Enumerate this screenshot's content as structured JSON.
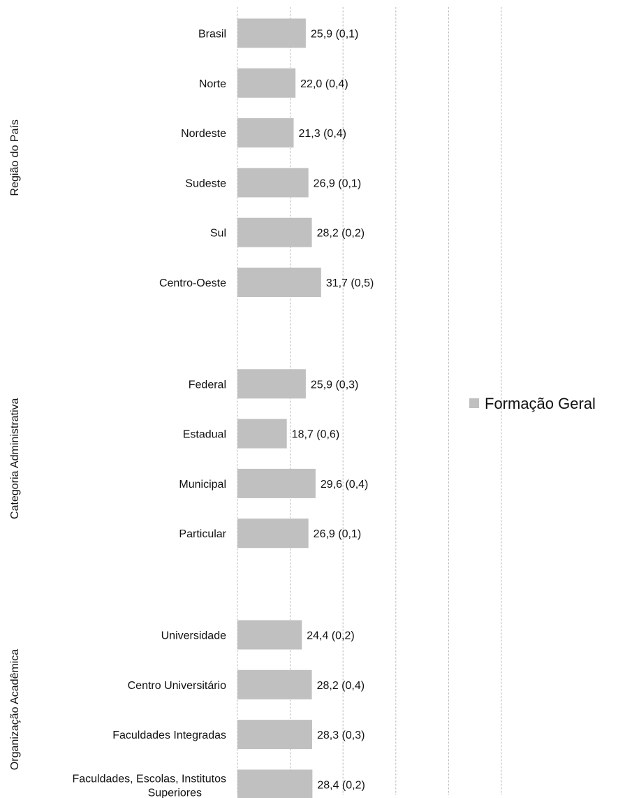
{
  "chart_data": {
    "type": "bar",
    "orientation": "horizontal",
    "series": [
      {
        "name": "Formação Geral",
        "color": "#c0c0c0"
      }
    ],
    "legend": {
      "position": "right",
      "label": "Formação Geral"
    },
    "grid": "vertical dotted",
    "xlim": [
      0,
      100
    ],
    "groups": [
      {
        "label": "Região do País",
        "items": [
          {
            "category": "Brasil",
            "value": 25.9,
            "label": "25,9 (0,1)"
          },
          {
            "category": "Norte",
            "value": 22.0,
            "label": "22,0 (0,4)"
          },
          {
            "category": "Nordeste",
            "value": 21.3,
            "label": "21,3 (0,4)"
          },
          {
            "category": "Sudeste",
            "value": 26.9,
            "label": "26,9 (0,1)"
          },
          {
            "category": "Sul",
            "value": 28.2,
            "label": "28,2 (0,2)"
          },
          {
            "category": "Centro-Oeste",
            "value": 31.7,
            "label": "31,7 (0,5)"
          }
        ]
      },
      {
        "label": "Categoria Administrativa",
        "items": [
          {
            "category": "Federal",
            "value": 25.9,
            "label": "25,9 (0,3)"
          },
          {
            "category": "Estadual",
            "value": 18.7,
            "label": "18,7 (0,6)"
          },
          {
            "category": "Municipal",
            "value": 29.6,
            "label": "29,6 (0,4)"
          },
          {
            "category": "Particular",
            "value": 26.9,
            "label": "26,9 (0,1)"
          }
        ]
      },
      {
        "label": "Organização Acadêmica",
        "items": [
          {
            "category": "Universidade",
            "value": 24.4,
            "label": "24,4 (0,2)"
          },
          {
            "category": "Centro Universitário",
            "value": 28.2,
            "label": "28,2 (0,4)"
          },
          {
            "category": "Faculdades Integradas",
            "value": 28.3,
            "label": "28,3 (0,3)"
          },
          {
            "category": [
              "Faculdades, Escolas, Institutos",
              "Superiores"
            ],
            "value": 28.4,
            "label": "28,4 (0,2)"
          }
        ]
      }
    ]
  }
}
